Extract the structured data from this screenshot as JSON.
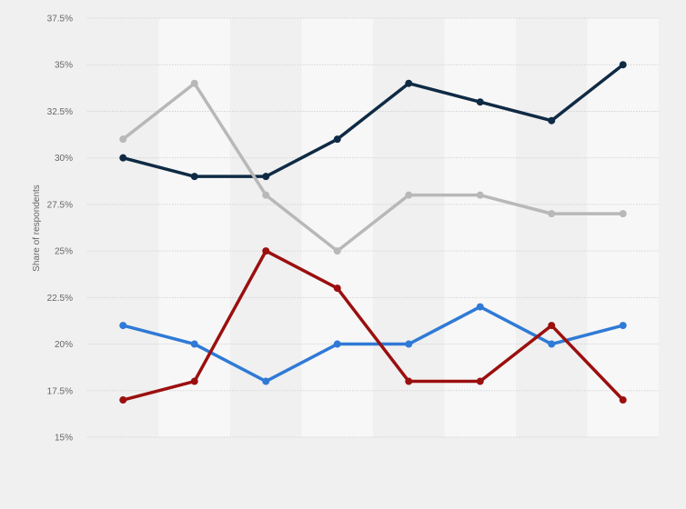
{
  "chart_data": {
    "type": "line",
    "title": "",
    "xlabel": "",
    "ylabel": "Share of respondents",
    "ylim": [
      15,
      37.5
    ],
    "yticks": [
      15,
      17.5,
      20,
      22.5,
      25,
      27.5,
      30,
      32.5,
      35,
      37.5
    ],
    "ytick_labels": [
      "15%",
      "17.5%",
      "20%",
      "22.5%",
      "25%",
      "27.5%",
      "30%",
      "32.5%",
      "35%",
      "37.5%"
    ],
    "categories": [
      "",
      "",
      "",
      "",
      "",
      "",
      "",
      ""
    ],
    "grid": true,
    "legend": "none",
    "series": [
      {
        "color": "#0f2a44",
        "values": [
          30,
          29,
          29,
          31,
          34,
          33,
          32,
          35
        ]
      },
      {
        "color": "#b8b8b8",
        "values": [
          31,
          34,
          28,
          25,
          28,
          28,
          27,
          27
        ]
      },
      {
        "color": "#2f7ad6",
        "values": [
          21,
          20,
          18,
          20,
          20,
          22,
          20,
          21
        ]
      },
      {
        "color": "#9b0f0f",
        "values": [
          17,
          18,
          25,
          23,
          18,
          18,
          21,
          17
        ]
      }
    ]
  }
}
